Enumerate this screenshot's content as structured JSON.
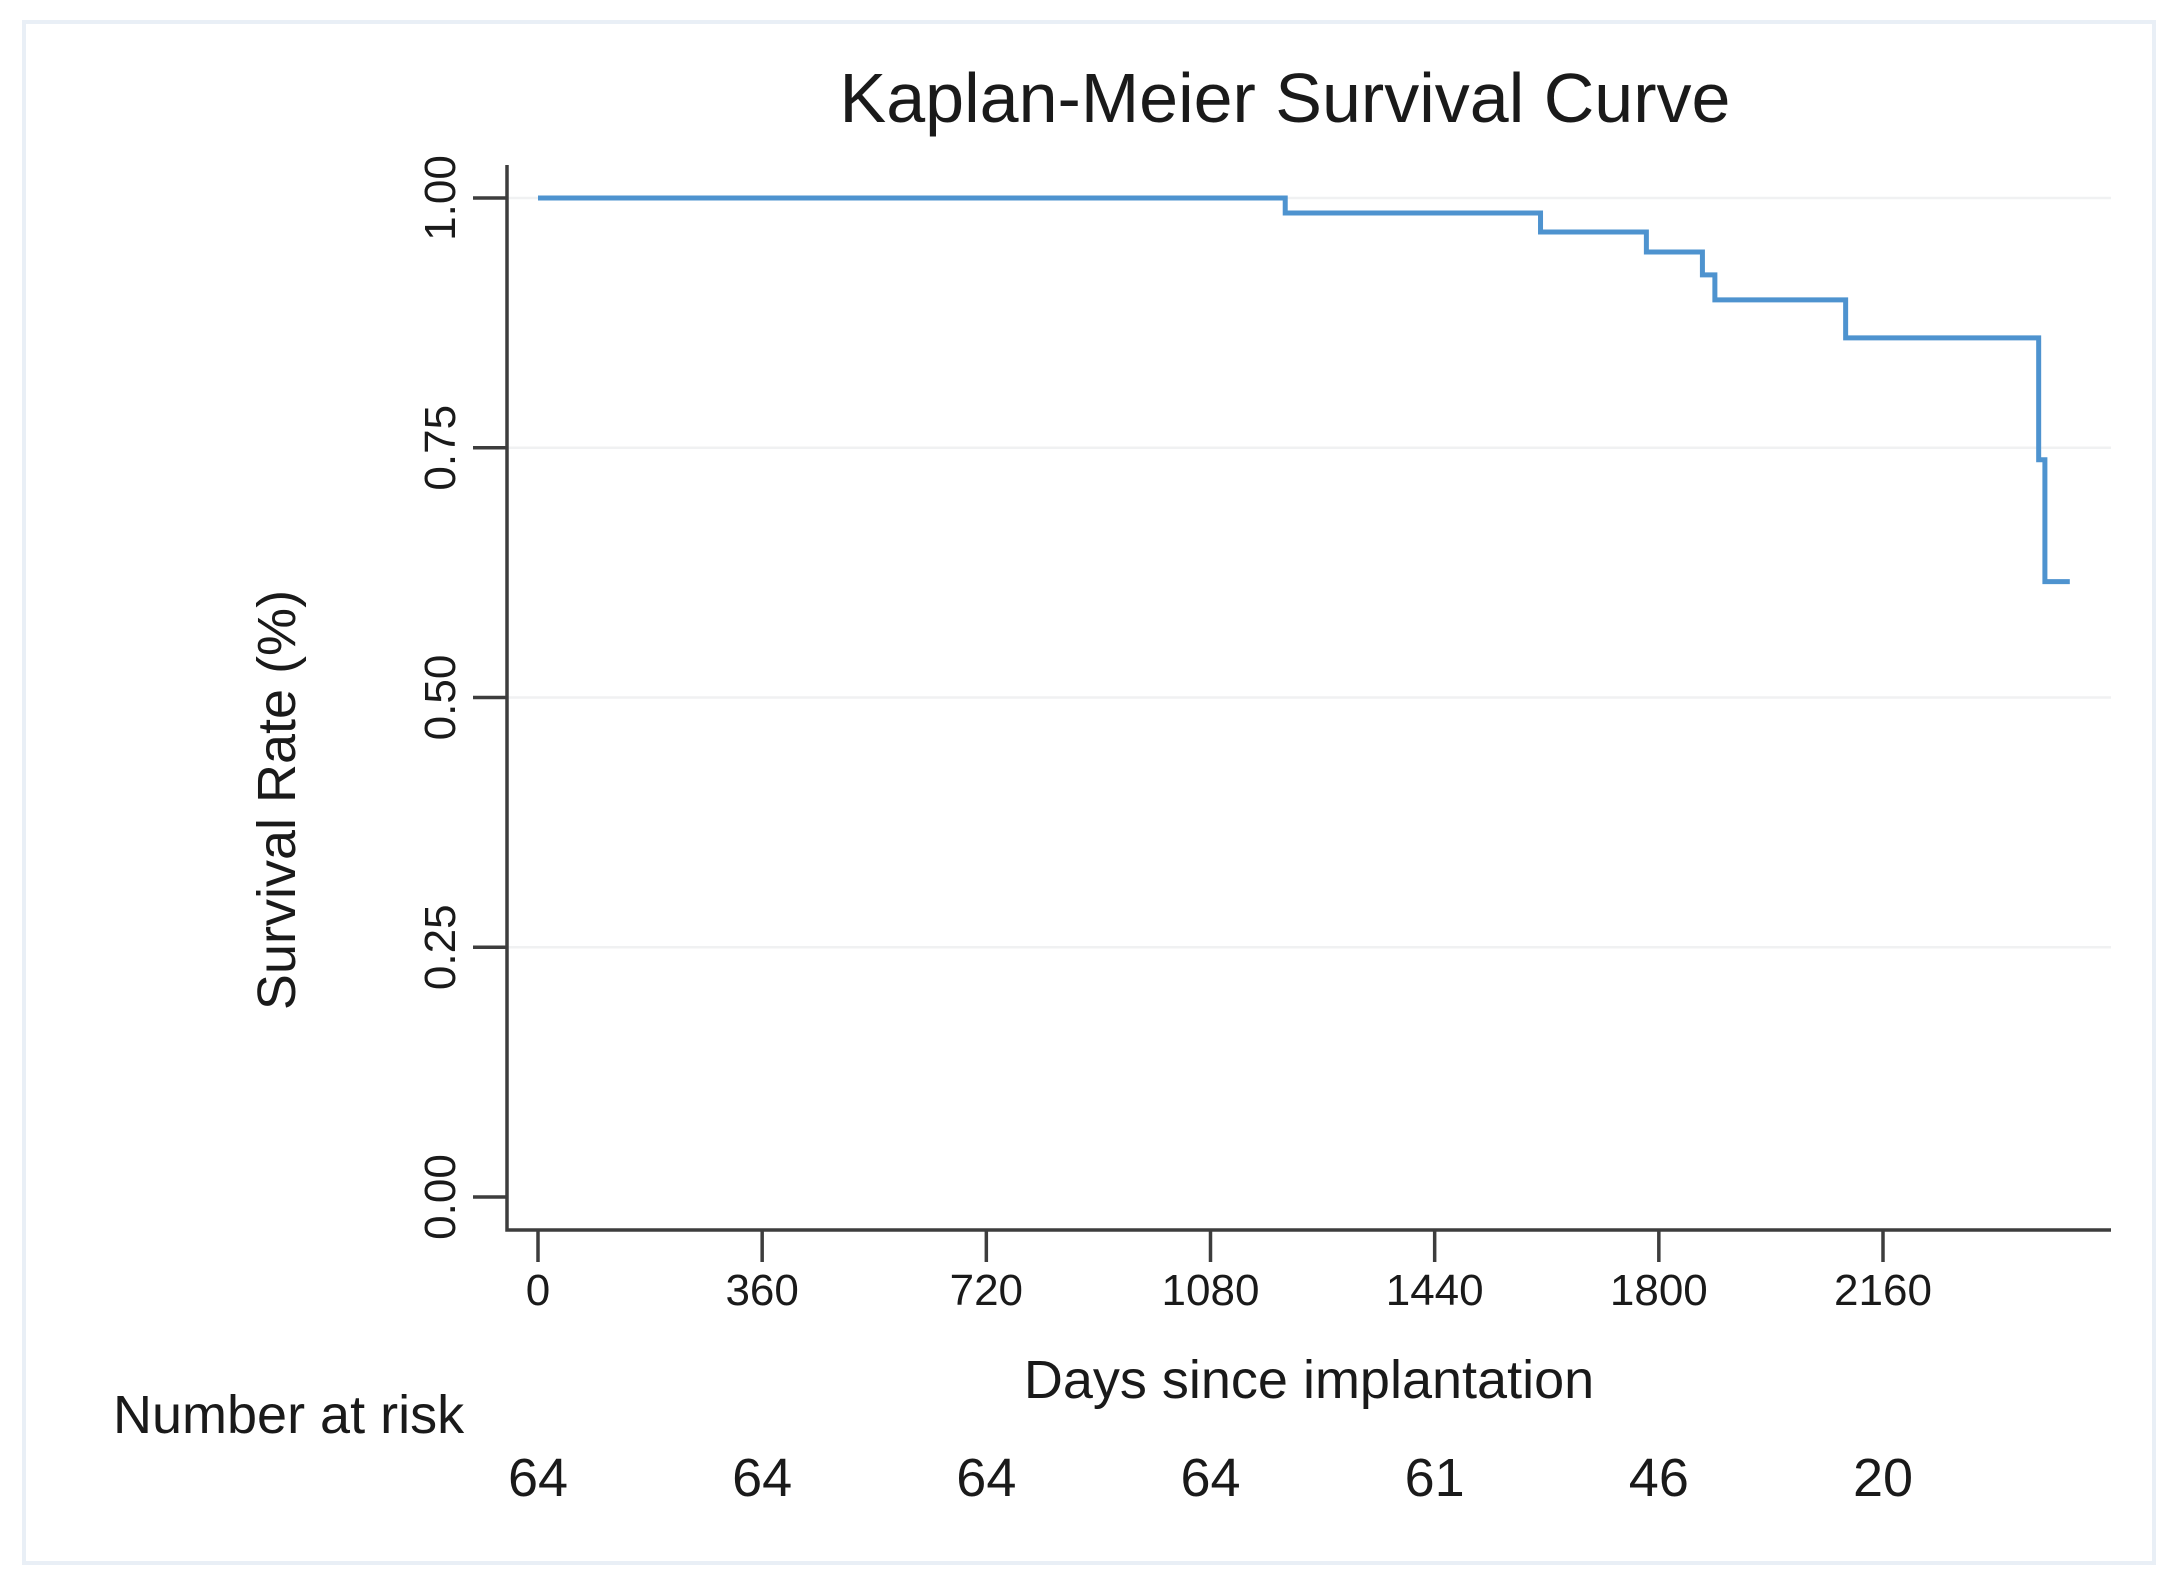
{
  "chart_data": {
    "type": "line",
    "variant": "kaplan-meier-step",
    "title": "Kaplan-Meier Survival Curve",
    "xlabel": "Days since implantation",
    "ylabel": "Survival Rate (%)",
    "x_ticks": [
      "0",
      "360",
      "720",
      "1080",
      "1440",
      "1800",
      "2160"
    ],
    "y_ticks": [
      "1.00",
      "0.75",
      "0.50",
      "0.25",
      "0.00"
    ],
    "xlim": [
      0,
      2530
    ],
    "ylim": [
      0,
      1
    ],
    "grid": "horizontal",
    "legend_position": "none",
    "series": [
      {
        "name": "Survival Rate",
        "step_points": [
          [
            0,
            1.0
          ],
          [
            1200,
            0.985
          ],
          [
            1610,
            0.966
          ],
          [
            1780,
            0.946
          ],
          [
            1870,
            0.923
          ],
          [
            1890,
            0.898
          ],
          [
            2100,
            0.86
          ],
          [
            2410,
            0.738
          ],
          [
            2420,
            0.616
          ],
          [
            2460,
            0.616
          ]
        ]
      }
    ],
    "risk_table": {
      "label": "Number at risk",
      "times": [
        0,
        360,
        720,
        1080,
        1440,
        1800,
        2160
      ],
      "counts": [
        "64",
        "64",
        "64",
        "64",
        "61",
        "46",
        "20"
      ]
    }
  },
  "colors": {
    "curve": "#4e93cf",
    "axis": "#3d3d3d",
    "grid": "#f0f1f2",
    "text": "#1a1a1a",
    "frame": "#e9eff6",
    "background": "#ffffff"
  }
}
